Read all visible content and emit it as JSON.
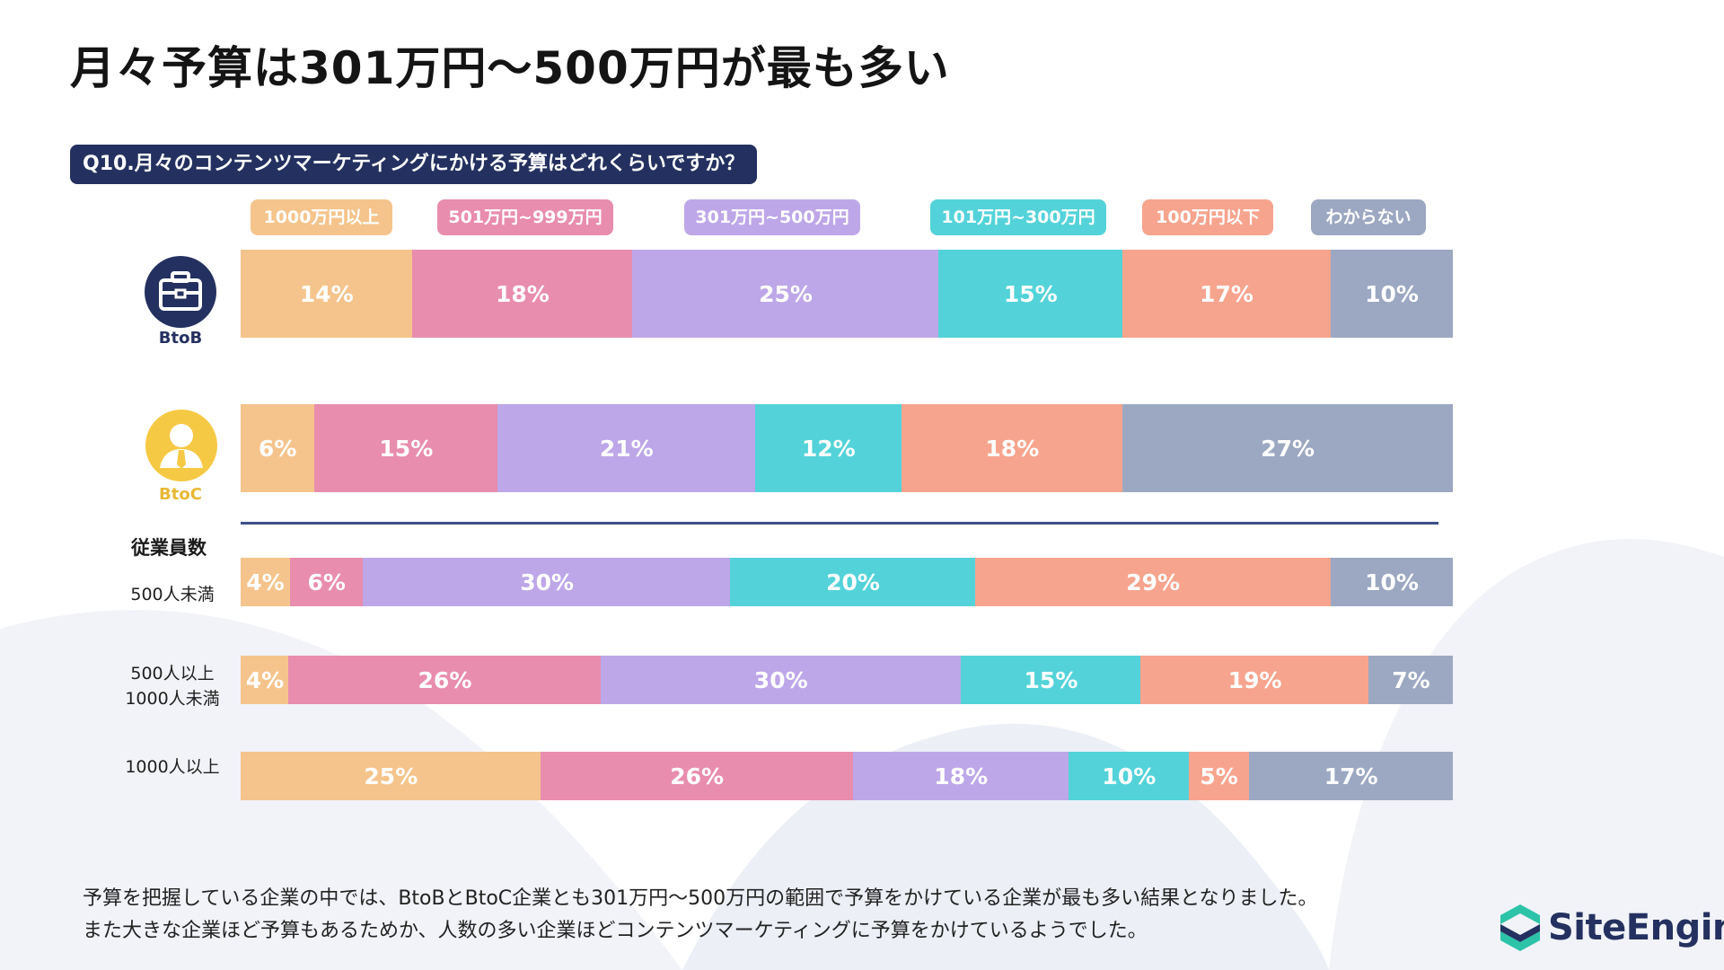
{
  "title": "月々予算は301万円〜500万円が最も多い",
  "question": "Q10.月々のコンテンツマーケティングにかける予算はどれくらいですか？",
  "legend": [
    {
      "label": "1000万円以上",
      "color": "#F5C48C"
    },
    {
      "label": "501万円~999万円",
      "color": "#E88DAE"
    },
    {
      "label": "301万円~500万円",
      "color": "#BDA7E8"
    },
    {
      "label": "101万円~300万円",
      "color": "#53D3D9"
    },
    {
      "label": "100万円以下",
      "color": "#F7A48E"
    },
    {
      "label": "わからない",
      "color": "#9CA8C2"
    }
  ],
  "group_label": "従業員数",
  "categories": {
    "btob": "BtoB",
    "btoc": "BtoC"
  },
  "row_labels": {
    "r500_under": "500人未満",
    "r500_1000_a": "500人以上",
    "r500_1000_b": "1000人未満",
    "r1000_over": "1000人以上"
  },
  "chart_data": {
    "type": "bar",
    "orientation": "horizontal",
    "stacked": true,
    "categories": [
      "BtoB",
      "BtoC",
      "500人未満",
      "500人以上 1000人未満",
      "1000人以上"
    ],
    "series": [
      {
        "name": "1000万円以上",
        "values": [
          14,
          6,
          4,
          4,
          25
        ]
      },
      {
        "name": "501万円~999万円",
        "values": [
          18,
          15,
          6,
          26,
          26
        ]
      },
      {
        "name": "301万円~500万円",
        "values": [
          25,
          21,
          30,
          30,
          18
        ]
      },
      {
        "name": "101万円~300万円",
        "values": [
          15,
          12,
          20,
          15,
          10
        ]
      },
      {
        "name": "100万円以下",
        "values": [
          17,
          18,
          29,
          19,
          5
        ]
      },
      {
        "name": "わからない",
        "values": [
          10,
          27,
          10,
          7,
          17
        ]
      }
    ],
    "value_suffix": "%",
    "legend_position": "top"
  },
  "footer": {
    "line1": "予算を把握している企業の中では、BtoBとBtoC企業とも301万円〜500万円の範囲で予算をかけている企業が最も多い結果となりました。",
    "line2": "また大きな企業ほど予算もあるためか、人数の多い企業ほどコンテンツマーケティングに予算をかけているようでした。"
  },
  "logo": {
    "text": "SiteEngine",
    "color": "#243160",
    "accent": "#2CC3A8"
  }
}
